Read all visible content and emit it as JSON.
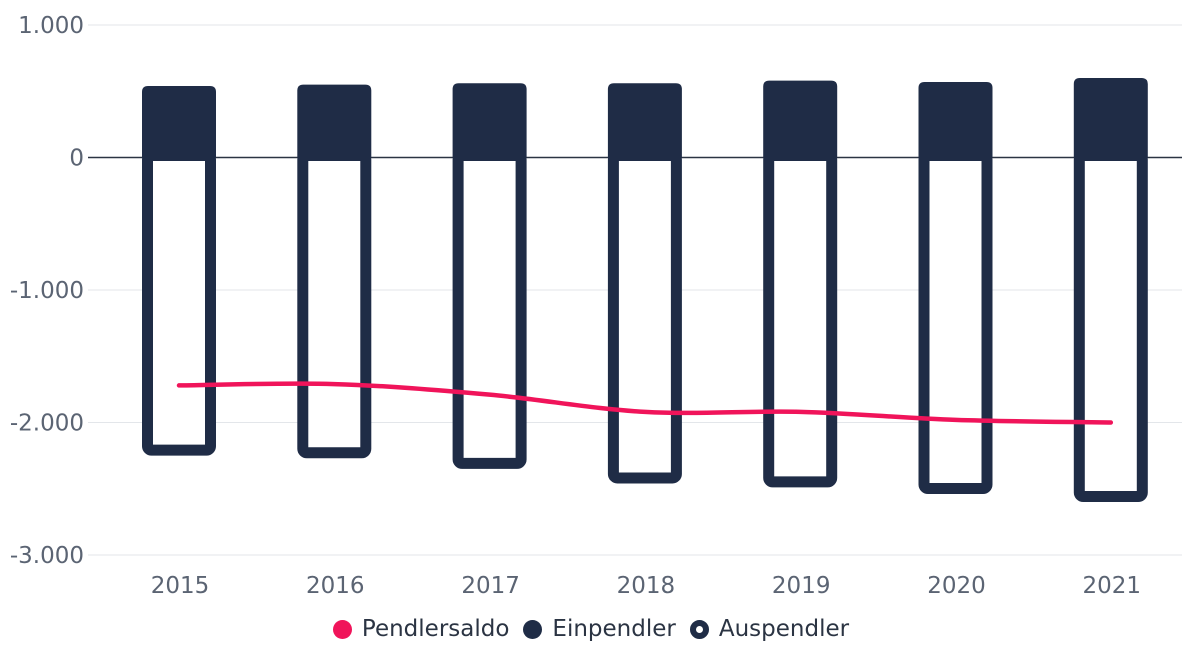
{
  "chart_data": {
    "type": "bar",
    "categories": [
      "2015",
      "2016",
      "2017",
      "2018",
      "2019",
      "2020",
      "2021"
    ],
    "series": [
      {
        "name": "Einpendler",
        "kind": "bar-filled",
        "color": "#1f2c46",
        "values": [
          540,
          550,
          560,
          560,
          580,
          570,
          600
        ]
      },
      {
        "name": "Auspendler",
        "kind": "bar-outline",
        "color": "#1f2c46",
        "values": [
          -2250,
          -2270,
          -2350,
          -2460,
          -2490,
          -2540,
          -2600
        ]
      },
      {
        "name": "Pendlersaldo",
        "kind": "line",
        "color": "#f0145a",
        "values": [
          -1720,
          -1710,
          -1790,
          -1920,
          -1920,
          -1980,
          -2000
        ]
      }
    ],
    "ylim": [
      -3000,
      1000
    ],
    "yticks": [
      1000,
      0,
      -1000,
      -2000,
      -3000
    ],
    "ytick_labels": [
      "1.000",
      "0",
      "-1.000",
      "-2.000",
      "-3.000"
    ],
    "grid": true,
    "legend": "bottom",
    "title": "",
    "xlabel": "",
    "ylabel": ""
  },
  "legend": {
    "pendlersaldo": "Pendlersaldo",
    "einpendler": "Einpendler",
    "auspendler": "Auspendler"
  }
}
